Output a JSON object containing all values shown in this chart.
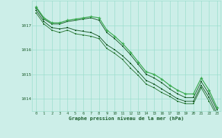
{
  "bg_color": "#cceee8",
  "grid_color": "#99ddcc",
  "line_color1": "#1a5c2a",
  "line_color2": "#2d7a3a",
  "line_color3": "#1a5c2a",
  "line_color4": "#3aaa50",
  "xlabel": "Graphe pression niveau de la mer (hPa)",
  "ylim": [
    1013.5,
    1018.0
  ],
  "xlim": [
    -0.5,
    23.5
  ],
  "yticks": [
    1014,
    1015,
    1016,
    1017
  ],
  "xticks": [
    0,
    1,
    2,
    3,
    4,
    5,
    6,
    7,
    8,
    9,
    10,
    11,
    12,
    13,
    14,
    15,
    16,
    17,
    18,
    19,
    20,
    21,
    22,
    23
  ],
  "series1": [
    1017.75,
    1017.3,
    1017.1,
    1017.1,
    1017.2,
    1017.25,
    1017.3,
    1017.35,
    1017.3,
    1016.8,
    1016.55,
    1016.25,
    1015.9,
    1015.5,
    1015.1,
    1015.0,
    1014.8,
    1014.55,
    1014.35,
    1014.2,
    1014.2,
    1014.85,
    1014.35,
    1013.65
  ],
  "series2": [
    1017.7,
    1017.25,
    1017.05,
    1017.05,
    1017.15,
    1017.2,
    1017.25,
    1017.3,
    1017.2,
    1016.7,
    1016.45,
    1016.15,
    1015.8,
    1015.4,
    1015.0,
    1014.85,
    1014.65,
    1014.4,
    1014.2,
    1014.05,
    1014.05,
    1014.7,
    1014.2,
    1013.55
  ],
  "series3": [
    1017.6,
    1017.15,
    1016.9,
    1016.85,
    1016.9,
    1016.8,
    1016.75,
    1016.7,
    1016.55,
    1016.2,
    1016.0,
    1015.75,
    1015.45,
    1015.1,
    1014.75,
    1014.6,
    1014.4,
    1014.2,
    1014.0,
    1013.9,
    1013.9,
    1014.55,
    1014.05,
    1013.4
  ],
  "series4": [
    1017.5,
    1017.05,
    1016.8,
    1016.7,
    1016.8,
    1016.65,
    1016.6,
    1016.55,
    1016.45,
    1016.05,
    1015.85,
    1015.6,
    1015.25,
    1014.95,
    1014.6,
    1014.45,
    1014.25,
    1014.1,
    1013.9,
    1013.8,
    1013.8,
    1014.45,
    1013.9,
    1013.3
  ]
}
